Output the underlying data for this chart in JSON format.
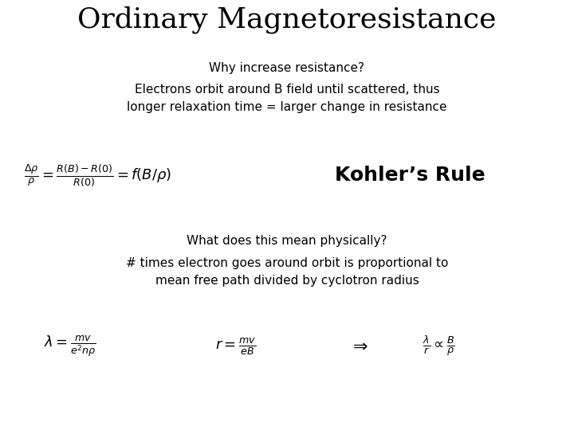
{
  "title": "Ordinary Magnetoresistance",
  "subtitle": "Why increase resistance?",
  "body_text1": "Electrons orbit around B field until scattered, thus\nlonger relaxation time = larger change in resistance",
  "kohlers_rule": "Kohler’s Rule",
  "question": "What does this mean physically?",
  "body_text2": "# times electron goes around orbit is proportional to\nmean free path divided by cyclotron radius",
  "background_color": "#ffffff",
  "text_color": "#000000",
  "title_fontsize": 26,
  "subtitle_fontsize": 11,
  "body_fontsize": 11,
  "formula_fontsize": 13,
  "kohlers_fontsize": 18
}
